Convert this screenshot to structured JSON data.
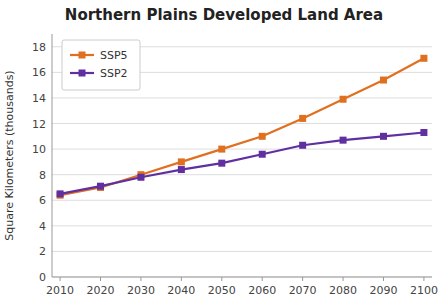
{
  "chart_data": {
    "type": "line",
    "title": "Northern Plains Developed Land Area",
    "y_label": "Square Kilometers (thousands)",
    "x": [
      2010,
      2020,
      2030,
      2040,
      2050,
      2060,
      2070,
      2080,
      2090,
      2100
    ],
    "series": [
      {
        "name": "SSP5",
        "color": "#E07020",
        "values": [
          6.4,
          7.0,
          8.0,
          9.0,
          10.0,
          11.0,
          12.4,
          13.9,
          15.4,
          17.1
        ]
      },
      {
        "name": "SSP2",
        "color": "#6030A0",
        "values": [
          6.5,
          7.1,
          7.8,
          8.4,
          8.9,
          9.6,
          10.3,
          10.7,
          11.0,
          11.3
        ]
      }
    ],
    "xlim": [
      2008,
      2102
    ],
    "xticks": [
      2010,
      2020,
      2030,
      2040,
      2050,
      2060,
      2070,
      2080,
      2090,
      2100
    ],
    "ylim": [
      0,
      19
    ],
    "yticks": [
      0,
      2,
      4,
      6,
      8,
      10,
      12,
      14,
      16,
      18
    ],
    "grid": true,
    "marker": "square",
    "legend": "upper left"
  }
}
